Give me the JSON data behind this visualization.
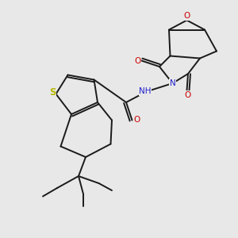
{
  "bg_color": "#e8e8e8",
  "bond_color": "#1a1a1a",
  "S_color": "#b8b800",
  "N_color": "#2020cc",
  "O_color": "#cc0000",
  "H_color": "#4a7a7a",
  "line_width": 1.4,
  "figsize": [
    3.0,
    3.0
  ],
  "dpi": 100,
  "xlim": [
    0,
    10
  ],
  "ylim": [
    0,
    10
  ]
}
